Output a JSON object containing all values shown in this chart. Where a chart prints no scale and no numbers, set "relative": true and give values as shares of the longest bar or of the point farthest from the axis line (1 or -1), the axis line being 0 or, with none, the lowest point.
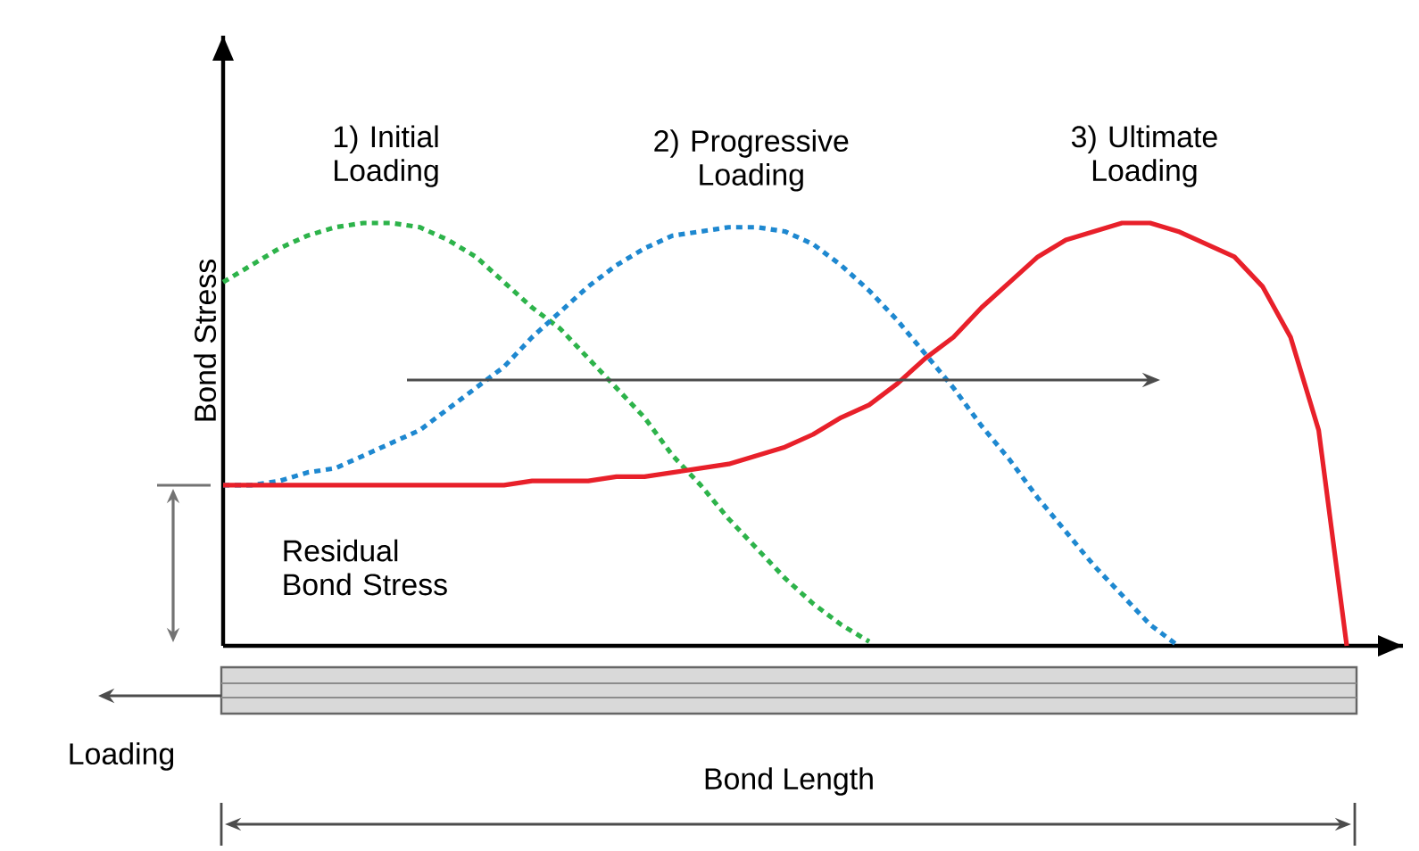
{
  "chart_data": {
    "type": "line",
    "relative": true,
    "ylabel": "Bond Stress",
    "legend": false,
    "categories": [
      null,
      null,
      null,
      null,
      null,
      null,
      null,
      null,
      null,
      null,
      null,
      null,
      null,
      null,
      null,
      null,
      null,
      null,
      null,
      null,
      null,
      null,
      null,
      null,
      null,
      null,
      null,
      null,
      null,
      null,
      null,
      null,
      null,
      null,
      null,
      null,
      null,
      null,
      null,
      null,
      null,
      null,
      null
    ],
    "series": [
      {
        "name": "1) Initial Loading",
        "color": "#2db34a",
        "line_style": "dashed",
        "values": [
          0.86,
          0.9,
          0.94,
          0.97,
          0.99,
          1.0,
          1.0,
          0.99,
          0.96,
          0.92,
          0.86,
          0.8,
          0.75,
          0.68,
          0.61,
          0.54,
          0.45,
          0.38,
          0.3,
          0.23,
          0.16,
          0.1,
          0.05,
          0.01,
          null,
          null,
          null,
          null,
          null,
          null,
          null,
          null,
          null,
          null,
          null,
          null,
          null,
          null,
          null,
          null,
          null,
          null,
          null
        ]
      },
      {
        "name": "2) Progressive Loading",
        "color": "#1e88d0",
        "line_style": "dashed",
        "values": [
          0.38,
          0.38,
          0.39,
          0.41,
          0.42,
          0.45,
          0.48,
          0.51,
          0.56,
          0.61,
          0.66,
          0.73,
          0.79,
          0.85,
          0.9,
          0.94,
          0.97,
          0.98,
          0.99,
          0.99,
          0.98,
          0.95,
          0.9,
          0.84,
          0.77,
          0.69,
          0.61,
          0.52,
          0.44,
          0.35,
          0.27,
          0.19,
          0.12,
          0.05,
          0.0,
          null,
          null,
          null,
          null,
          null,
          null,
          null,
          null
        ]
      },
      {
        "name": "3) Ultimate Loading",
        "color": "#e8202a",
        "line_style": "solid",
        "values": [
          0.38,
          0.38,
          0.38,
          0.38,
          0.38,
          0.38,
          0.38,
          0.38,
          0.38,
          0.38,
          0.38,
          0.39,
          0.39,
          0.39,
          0.4,
          0.4,
          0.41,
          0.42,
          0.43,
          0.45,
          0.47,
          0.5,
          0.54,
          0.57,
          0.62,
          0.68,
          0.73,
          0.8,
          0.86,
          0.92,
          0.96,
          0.98,
          1.0,
          1.0,
          0.98,
          0.95,
          0.92,
          0.85,
          0.73,
          0.51,
          0.0,
          null,
          null
        ]
      }
    ],
    "annotations": [
      "Residual Bond Stress",
      "Loading",
      "Bond Length"
    ]
  }
}
